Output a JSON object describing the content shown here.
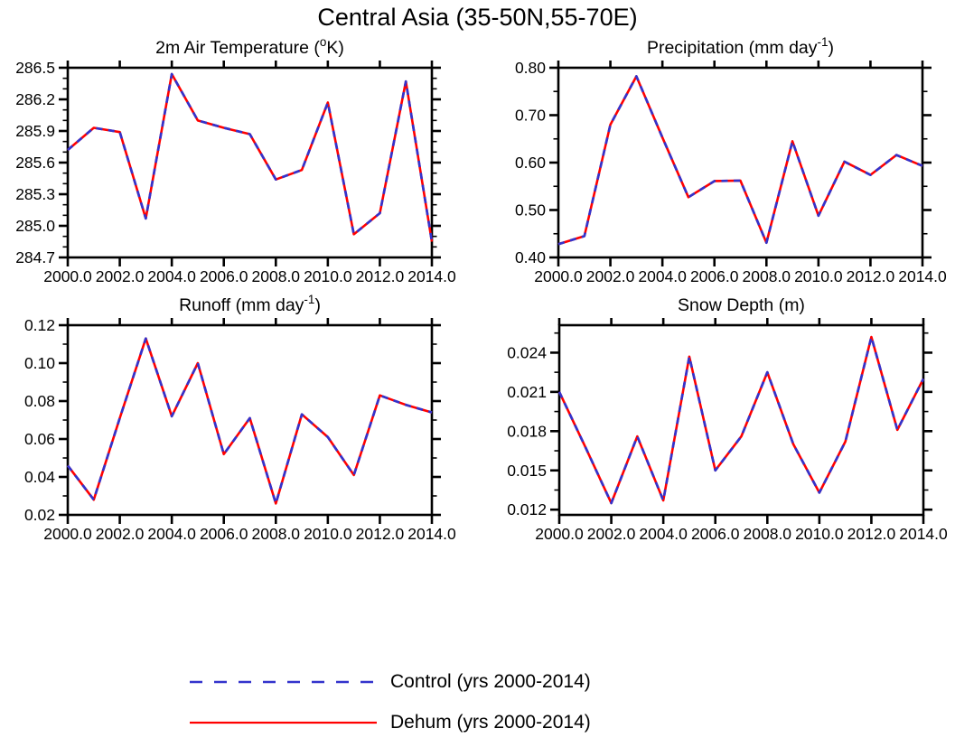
{
  "figure": {
    "title": "Central Asia (35-50N,55-70E)"
  },
  "colors": {
    "control_blue": "#3333cc",
    "dehum_red": "#ff0000",
    "axis_black": "#000000",
    "background": "#ffffff"
  },
  "legend": {
    "position": "bottom",
    "items": [
      {
        "label": "Control (yrs 2000-2014)",
        "color": "#3333cc",
        "style": "dashed"
      },
      {
        "label": "Dehum (yrs 2000-2014)",
        "color": "#ff0000",
        "style": "solid"
      }
    ]
  },
  "chart_data": [
    {
      "id": "temperature",
      "type": "line",
      "title_parts": [
        {
          "t": "2m Air Temperature ("
        },
        {
          "t": "o",
          "sup": true
        },
        {
          "t": "K)"
        }
      ],
      "x": [
        2000,
        2001,
        2002,
        2003,
        2004,
        2005,
        2006,
        2007,
        2008,
        2009,
        2010,
        2011,
        2012,
        2013,
        2014
      ],
      "xlim": [
        2000,
        2014
      ],
      "ylim": [
        284.7,
        286.5
      ],
      "xticks": [
        2000,
        2002,
        2004,
        2006,
        2008,
        2010,
        2012,
        2014
      ],
      "xtick_labels": [
        "2000.0",
        "2002.0",
        "2004.0",
        "2006.0",
        "2008.0",
        "2010.0",
        "2012.0",
        "2014.0"
      ],
      "yticks": [
        284.7,
        285.0,
        285.3,
        285.6,
        285.9,
        286.2,
        286.5
      ],
      "ytick_labels": [
        "284.7",
        "285.0",
        "285.3",
        "285.6",
        "285.9",
        "286.2",
        "286.5"
      ],
      "yminors": [
        284.8,
        284.9,
        285.1,
        285.2,
        285.4,
        285.5,
        285.7,
        285.8,
        286.0,
        286.1,
        286.3,
        286.4
      ],
      "grid": false,
      "series": [
        {
          "name": "Control (yrs 2000-2014)",
          "values": [
            285.72,
            285.93,
            285.89,
            285.07,
            286.44,
            286.0,
            285.93,
            285.87,
            285.44,
            285.53,
            286.17,
            284.92,
            285.12,
            286.37,
            284.85
          ]
        },
        {
          "name": "Dehum (yrs 2000-2014)",
          "values": [
            285.72,
            285.93,
            285.89,
            285.07,
            286.44,
            286.0,
            285.93,
            285.87,
            285.44,
            285.53,
            286.17,
            284.92,
            285.12,
            286.37,
            284.85
          ]
        }
      ]
    },
    {
      "id": "precipitation",
      "type": "line",
      "title_parts": [
        {
          "t": "Precipitation (mm day"
        },
        {
          "t": "-1",
          "sup": true
        },
        {
          "t": ")"
        }
      ],
      "x": [
        2000,
        2001,
        2002,
        2003,
        2004,
        2005,
        2006,
        2007,
        2008,
        2009,
        2010,
        2011,
        2012,
        2013,
        2014
      ],
      "xlim": [
        2000,
        2014
      ],
      "ylim": [
        0.4,
        0.8
      ],
      "xticks": [
        2000,
        2002,
        2004,
        2006,
        2008,
        2010,
        2012,
        2014
      ],
      "xtick_labels": [
        "2000.0",
        "2002.0",
        "2004.0",
        "2006.0",
        "2008.0",
        "2010.0",
        "2012.0",
        "2014.0"
      ],
      "yticks": [
        0.4,
        0.5,
        0.6,
        0.7,
        0.8
      ],
      "ytick_labels": [
        "0.40",
        "0.50",
        "0.60",
        "0.70",
        "0.80"
      ],
      "yminors": [
        0.45,
        0.55,
        0.65,
        0.75
      ],
      "grid": false,
      "series": [
        {
          "name": "Control (yrs 2000-2014)",
          "values": [
            0.428,
            0.445,
            0.68,
            0.782,
            0.653,
            0.527,
            0.561,
            0.562,
            0.431,
            0.645,
            0.488,
            0.602,
            0.574,
            0.616,
            0.593
          ]
        },
        {
          "name": "Dehum (yrs 2000-2014)",
          "values": [
            0.428,
            0.445,
            0.68,
            0.782,
            0.653,
            0.527,
            0.561,
            0.562,
            0.431,
            0.645,
            0.488,
            0.602,
            0.574,
            0.616,
            0.593
          ]
        }
      ]
    },
    {
      "id": "runoff",
      "type": "line",
      "title_parts": [
        {
          "t": "Runoff (mm day"
        },
        {
          "t": "-1",
          "sup": true
        },
        {
          "t": ")"
        }
      ],
      "x": [
        2000,
        2001,
        2002,
        2003,
        2004,
        2005,
        2006,
        2007,
        2008,
        2009,
        2010,
        2011,
        2012,
        2013,
        2014
      ],
      "xlim": [
        2000,
        2014
      ],
      "ylim": [
        0.02,
        0.12
      ],
      "xticks": [
        2000,
        2002,
        2004,
        2006,
        2008,
        2010,
        2012,
        2014
      ],
      "xtick_labels": [
        "2000.0",
        "2002.0",
        "2004.0",
        "2006.0",
        "2008.0",
        "2010.0",
        "2012.0",
        "2014.0"
      ],
      "yticks": [
        0.02,
        0.04,
        0.06,
        0.08,
        0.1,
        0.12
      ],
      "ytick_labels": [
        "0.02",
        "0.04",
        "0.06",
        "0.08",
        "0.10",
        "0.12"
      ],
      "yminors": [
        0.03,
        0.05,
        0.07,
        0.09,
        0.11
      ],
      "grid": false,
      "series": [
        {
          "name": "Control (yrs 2000-2014)",
          "values": [
            0.046,
            0.028,
            0.071,
            0.113,
            0.072,
            0.1,
            0.052,
            0.071,
            0.026,
            0.073,
            0.061,
            0.041,
            0.083,
            0.078,
            0.074
          ]
        },
        {
          "name": "Dehum (yrs 2000-2014)",
          "values": [
            0.046,
            0.028,
            0.071,
            0.113,
            0.072,
            0.1,
            0.052,
            0.071,
            0.026,
            0.073,
            0.061,
            0.041,
            0.083,
            0.078,
            0.074
          ]
        }
      ]
    },
    {
      "id": "snow",
      "type": "line",
      "title_parts": [
        {
          "t": "Snow Depth (m)"
        }
      ],
      "x": [
        2000,
        2001,
        2002,
        2003,
        2004,
        2005,
        2006,
        2007,
        2008,
        2009,
        2010,
        2011,
        2012,
        2013,
        2014
      ],
      "xlim": [
        2000,
        2014
      ],
      "ylim": [
        0.0116,
        0.0261
      ],
      "xticks": [
        2000,
        2002,
        2004,
        2006,
        2008,
        2010,
        2012,
        2014
      ],
      "xtick_labels": [
        "2000.0",
        "2002.0",
        "2004.0",
        "2006.0",
        "2008.0",
        "2010.0",
        "2012.0",
        "2014.0"
      ],
      "yticks": [
        0.012,
        0.015,
        0.018,
        0.021,
        0.024
      ],
      "ytick_labels": [
        "0.012",
        "0.015",
        "0.018",
        "0.021",
        "0.024"
      ],
      "yminors": [
        0.0135,
        0.0165,
        0.0195,
        0.0225,
        0.0255
      ],
      "grid": false,
      "series": [
        {
          "name": "Control (yrs 2000-2014)",
          "values": [
            0.021,
            0.0168,
            0.0125,
            0.0176,
            0.0127,
            0.0237,
            0.015,
            0.0176,
            0.0225,
            0.017,
            0.0133,
            0.0172,
            0.0252,
            0.0181,
            0.022
          ]
        },
        {
          "name": "Dehum (yrs 2000-2014)",
          "values": [
            0.021,
            0.0168,
            0.0125,
            0.0176,
            0.0127,
            0.0237,
            0.015,
            0.0176,
            0.0225,
            0.017,
            0.0133,
            0.0172,
            0.0252,
            0.0181,
            0.022
          ]
        }
      ]
    }
  ]
}
